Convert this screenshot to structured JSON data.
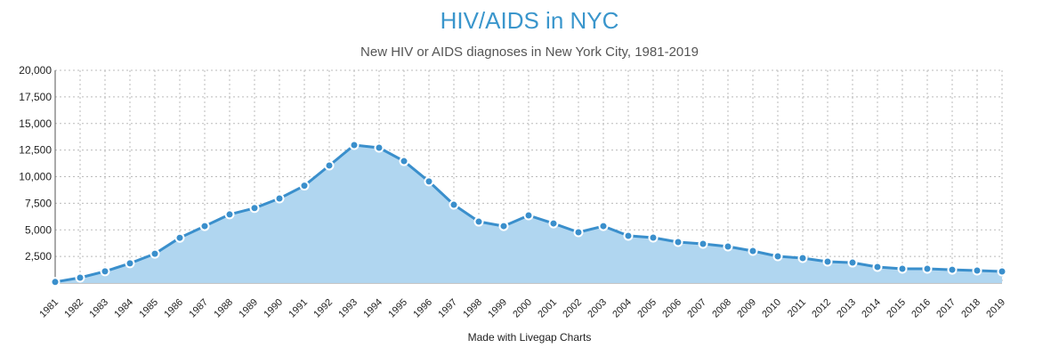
{
  "header": {
    "title": "HIV/AIDS in NYC",
    "subtitle": "New HIV or AIDS diagnoses in New York City, 1981-2019"
  },
  "footer": {
    "credit": "Made with Livegap Charts"
  },
  "colors": {
    "line": "#3a8fcc",
    "fill": "#b0d6f0",
    "title": "#3a96cc",
    "grid": "#bbbbbb"
  },
  "chart_data": {
    "type": "area",
    "title": "HIV/AIDS in NYC",
    "subtitle": "New HIV or AIDS diagnoses in New York City, 1981-2019",
    "xlabel": "",
    "ylabel": "",
    "ylim": [
      0,
      20000
    ],
    "yticks": [
      2500,
      5000,
      7500,
      10000,
      12500,
      15000,
      17500,
      20000
    ],
    "ytick_labels": [
      "2,500",
      "5,000",
      "7,500",
      "10,000",
      "12,500",
      "15,000",
      "17,500",
      "20,000"
    ],
    "grid": true,
    "legend": null,
    "categories": [
      "1981",
      "1982",
      "1983",
      "1984",
      "1985",
      "1986",
      "1987",
      "1988",
      "1989",
      "1990",
      "1991",
      "1992",
      "1993",
      "1994",
      "1995",
      "1996",
      "1997",
      "1998",
      "1999",
      "2000",
      "2001",
      "2002",
      "2003",
      "2004",
      "2005",
      "2006",
      "2007",
      "2008",
      "2009",
      "2010",
      "2011",
      "2012",
      "2013",
      "2014",
      "2015",
      "2016",
      "2017",
      "2018",
      "2019"
    ],
    "series": [
      {
        "name": "New HIV or AIDS diagnoses",
        "values": [
          100,
          500,
          1100,
          1850,
          2750,
          4250,
          5350,
          6450,
          7050,
          7950,
          9150,
          11050,
          12970,
          12720,
          11460,
          9550,
          7360,
          5770,
          5350,
          6360,
          5600,
          4770,
          5350,
          4440,
          4270,
          3850,
          3680,
          3430,
          3010,
          2510,
          2340,
          2010,
          1920,
          1510,
          1340,
          1340,
          1250,
          1170,
          1090
        ]
      }
    ]
  }
}
